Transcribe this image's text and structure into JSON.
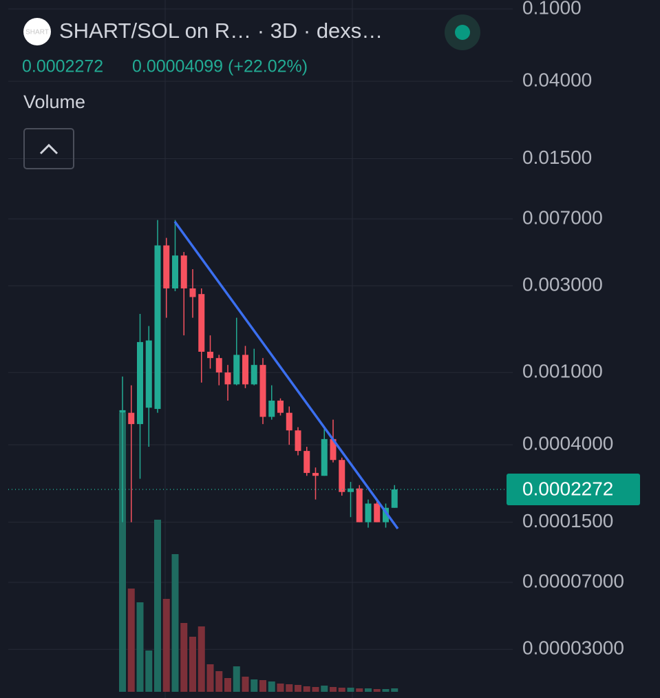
{
  "header": {
    "logo": "SHART",
    "title": "SHART/SOL on R… · 3D · dexs…",
    "price": "0.0002272",
    "change": "0.00004099 (+22.02%)",
    "indicator": "Volume"
  },
  "chart_data": {
    "type": "candlestick",
    "log_scale": true,
    "grid": true,
    "up_color": "#22ab94",
    "down_color": "#f7525f",
    "up_volume_color": "#1f6b60",
    "down_volume_color": "#7d3039",
    "ylim": [
      1.75e-05,
      0.112
    ],
    "yticks": [
      {
        "value": 0.1,
        "label": "0.1000"
      },
      {
        "value": 0.04,
        "label": "0.04000"
      },
      {
        "value": 0.015,
        "label": "0.01500"
      },
      {
        "value": 0.007,
        "label": "0.007000"
      },
      {
        "value": 0.003,
        "label": "0.003000"
      },
      {
        "value": 0.001,
        "label": "0.001000"
      },
      {
        "value": 0.0004,
        "label": "0.0004000"
      },
      {
        "value": 0.00015,
        "label": "0.0001500"
      },
      {
        "value": 7e-05,
        "label": "0.00007000"
      },
      {
        "value": 3e-05,
        "label": "0.00003000"
      }
    ],
    "open": [
      0.0006,
      0.0006,
      0.00052,
      0.00064,
      0.00063,
      0.005,
      0.0029,
      0.0044,
      0.0029,
      0.0027,
      0.0013,
      0.0012,
      0.001,
      0.00086,
      0.00125,
      0.00086,
      0.0011,
      0.00057,
      0.0007,
      0.0006,
      0.00048,
      0.00037,
      0.00028,
      0.00027,
      0.00043,
      0.00033,
      0.00022,
      0.00023,
      0.00015,
      0.00019,
      0.00015,
      0.00018
    ],
    "high": [
      0.00095,
      0.00085,
      0.0021,
      0.0018,
      0.0069,
      0.0055,
      0.0069,
      0.0046,
      0.0037,
      0.0029,
      0.0016,
      0.00125,
      0.0011,
      0.002,
      0.0014,
      0.00135,
      0.0012,
      0.00085,
      0.00072,
      0.00065,
      0.0005,
      0.00039,
      0.0003,
      0.0005,
      0.00055,
      0.00034,
      0.00025,
      0.00024,
      0.0002,
      0.0002,
      0.00019,
      0.00024
    ],
    "low": [
      0.00015,
      0.00015,
      0.00026,
      0.00039,
      0.0006,
      0.002,
      0.0028,
      0.0016,
      0.002,
      0.00088,
      0.00105,
      0.00085,
      0.0007,
      0.00085,
      0.00082,
      0.00085,
      0.00052,
      0.00055,
      0.00058,
      0.0004,
      0.00035,
      0.00027,
      0.0002,
      0.00027,
      0.00032,
      0.00021,
      0.00016,
      0.00015,
      0.00014,
      0.00015,
      0.00014,
      0.00018
    ],
    "close": [
      0.00062,
      0.00052,
      0.00147,
      0.0015,
      0.005,
      0.0029,
      0.0044,
      0.0029,
      0.0026,
      0.0013,
      0.0012,
      0.001,
      0.00086,
      0.00125,
      0.00086,
      0.0011,
      0.00057,
      0.0007,
      0.0006,
      0.00048,
      0.00037,
      0.00028,
      0.00027,
      0.00043,
      0.00033,
      0.00022,
      0.00023,
      0.00015,
      0.00019,
      0.00015,
      0.00018,
      0.0002272
    ],
    "volume": [
      405,
      150,
      130,
      60,
      250,
      135,
      200,
      100,
      80,
      95,
      40,
      30,
      20,
      37,
      22,
      18,
      17,
      15,
      12,
      11,
      10,
      8,
      7,
      9,
      7,
      6,
      6,
      5,
      5,
      4,
      4,
      5
    ]
  }
}
